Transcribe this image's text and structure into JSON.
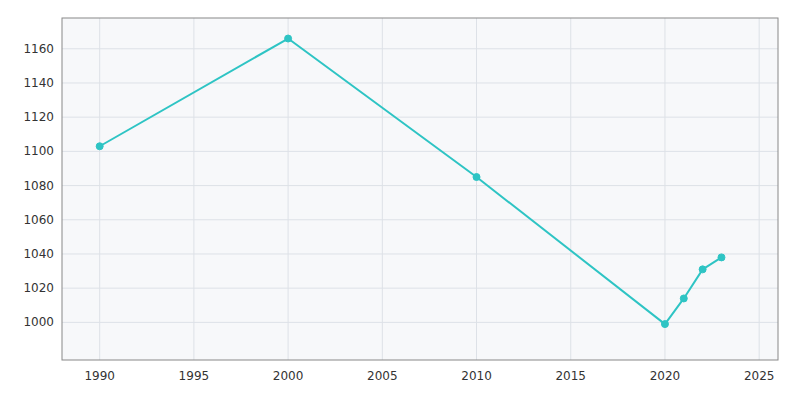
{
  "chart_data": {
    "type": "line",
    "x": [
      1990,
      2000,
      2010,
      2020,
      2021,
      2022,
      2023
    ],
    "values": [
      1103,
      1166,
      1085,
      999,
      1014,
      1031,
      1038
    ],
    "color": "#2EC4C4",
    "marker": "circle",
    "xlim": [
      1988,
      2026
    ],
    "ylim": [
      978,
      1178
    ],
    "xticks": [
      1990,
      1995,
      2000,
      2005,
      2010,
      2015,
      2020,
      2025
    ],
    "yticks": [
      1000,
      1020,
      1040,
      1060,
      1080,
      1100,
      1120,
      1140,
      1160
    ],
    "grid": true
  }
}
